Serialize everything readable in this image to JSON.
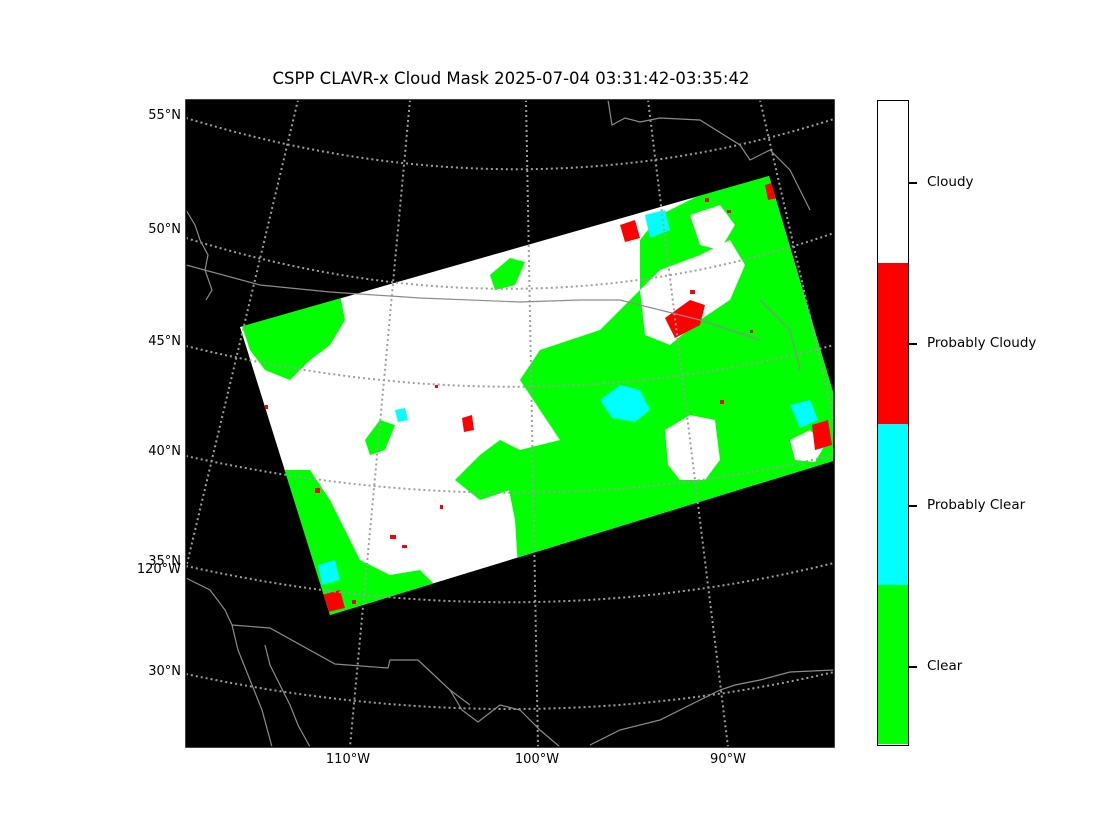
{
  "title": "CSPP CLAVR-x Cloud Mask 2025-07-04 03:31:42-03:35:42",
  "lat_labels": [
    "55°N",
    "50°N",
    "45°N",
    "40°N",
    "35°N",
    "30°N"
  ],
  "lon_labels": [
    "110°W",
    "100°W",
    "90°W"
  ],
  "extra_lon_label": "120°W",
  "colors": {
    "map_background": "#000000",
    "clear": "#00ff00",
    "probably_clear": "#00ffff",
    "probably_cloudy": "#ff0000",
    "cloudy": "#ffffff",
    "grid": "#9e9e9e",
    "coastline": "#8c8c8c"
  },
  "legend": {
    "categories": [
      {
        "label": "Cloudy",
        "color": "#ffffff"
      },
      {
        "label": "Probably Cloudy",
        "color": "#ff0000"
      },
      {
        "label": "Probably Clear",
        "color": "#00ffff"
      },
      {
        "label": "Clear",
        "color": "#00ff00"
      }
    ]
  }
}
